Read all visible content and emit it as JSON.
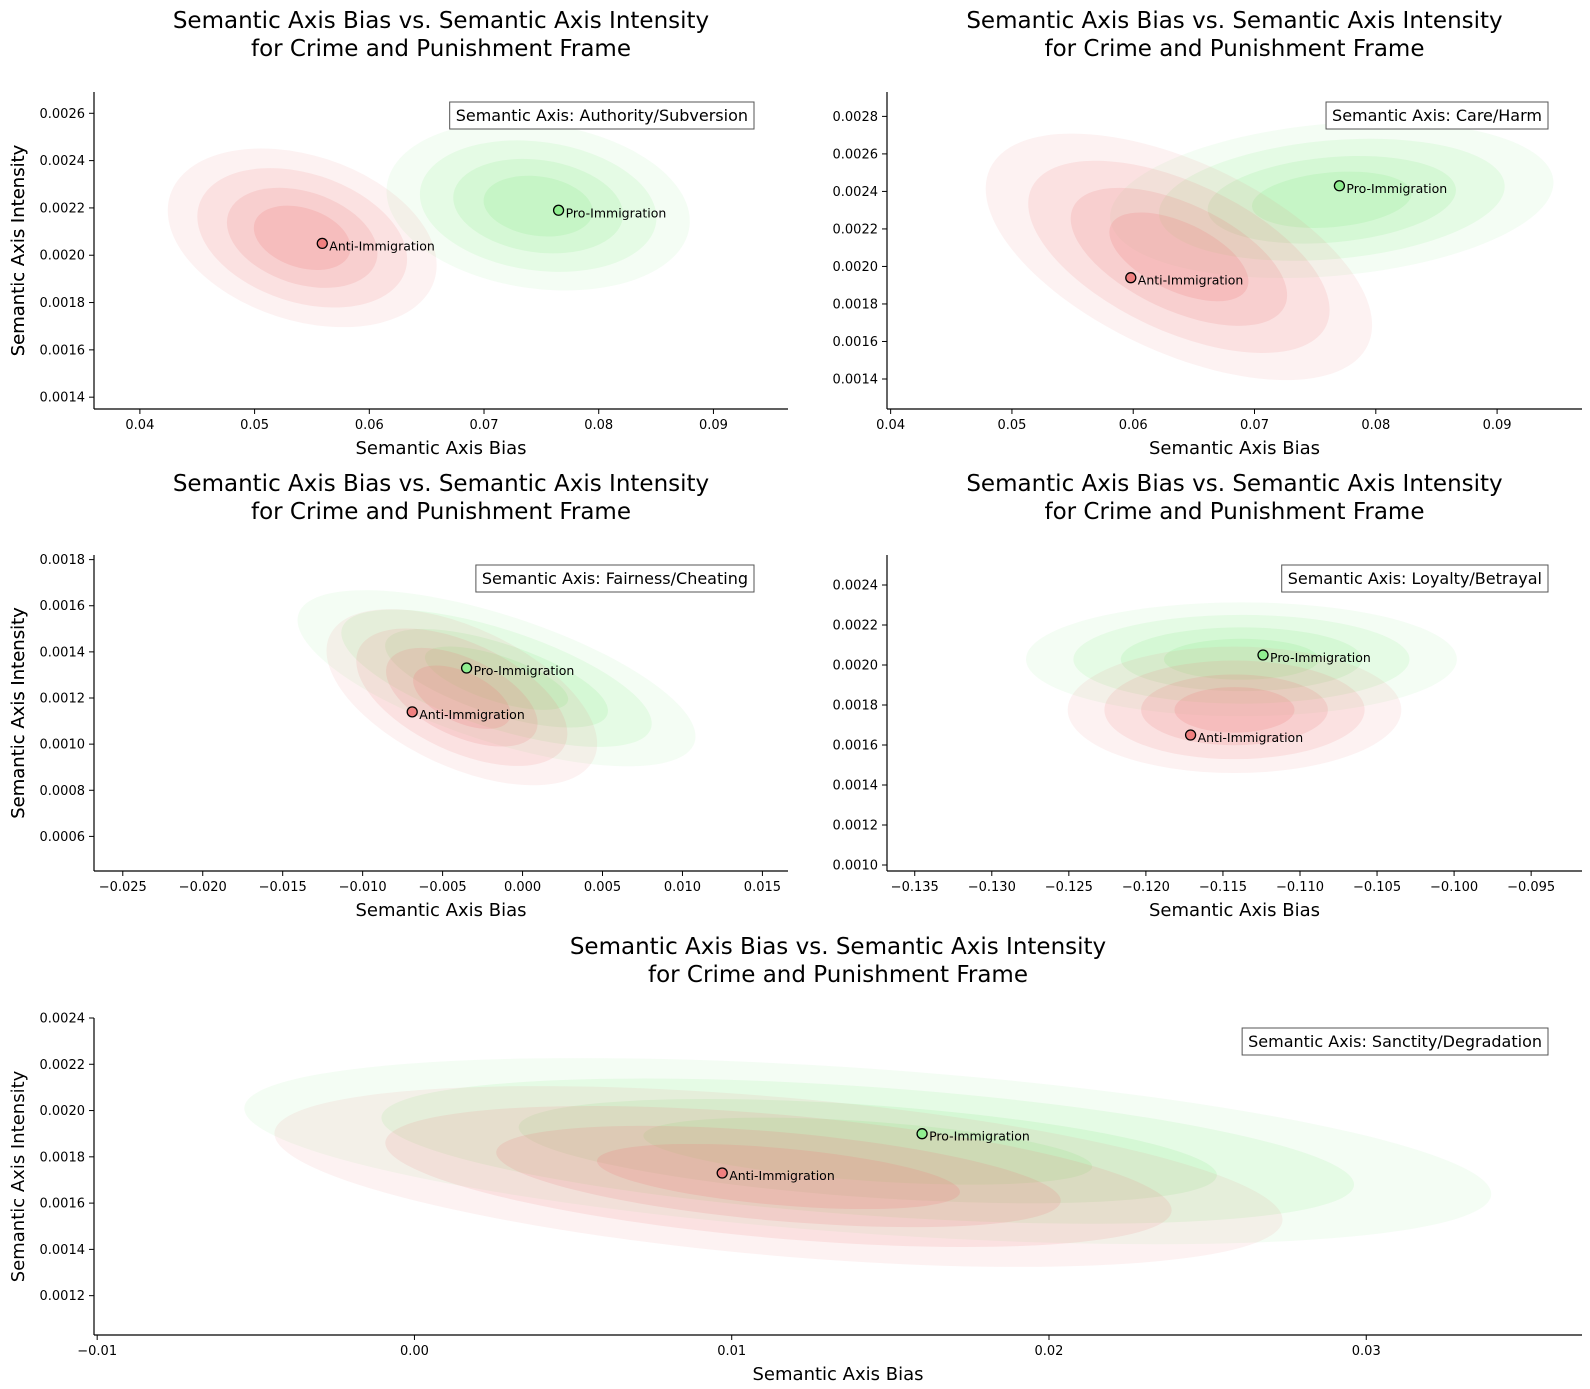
{
  "colors": {
    "anti": "#f08080",
    "pro": "#90ee90",
    "axis": "#000000"
  },
  "chart_data": [
    {
      "type": "scatter",
      "title": "Semantic Axis Bias vs. Semantic Axis Intensity\nfor Crime and Punishment Frame",
      "xlabel": "Semantic Axis Bias",
      "ylabel": "Semantic Axis Intensity",
      "annotation": "Semantic Axis: Authority/Subversion",
      "xlim": [
        0.036,
        0.0965
      ],
      "ylim": [
        0.00135,
        0.00269
      ],
      "xticks": [
        "0.04",
        "0.05",
        "0.06",
        "0.07",
        "0.08",
        "0.09"
      ],
      "yticks": [
        "0.0014",
        "0.0016",
        "0.0018",
        "0.0020",
        "0.0022",
        "0.0024",
        "0.0026"
      ],
      "legend_position": "top-right",
      "series": [
        {
          "name": "Anti-Immigration",
          "x": 0.0559,
          "y": 0.00205
        },
        {
          "name": "Pro-Immigration",
          "x": 0.0765,
          "y": 0.00219
        }
      ]
    },
    {
      "type": "scatter",
      "title": "Semantic Axis Bias vs. Semantic Axis Intensity\nfor Crime and Punishment Frame",
      "xlabel": "Semantic Axis Bias",
      "ylabel": "Semantic Axis Intensity",
      "annotation": "Semantic Axis: Care/Harm",
      "xlim": [
        0.0397,
        0.097
      ],
      "ylim": [
        0.00124,
        0.00293
      ],
      "xticks": [
        "0.04",
        "0.05",
        "0.06",
        "0.07",
        "0.08",
        "0.09"
      ],
      "yticks": [
        "0.0014",
        "0.0016",
        "0.0018",
        "0.0020",
        "0.0022",
        "0.0024",
        "0.0026",
        "0.0028"
      ],
      "legend_position": "top-right",
      "series": [
        {
          "name": "Anti-Immigration",
          "x": 0.0598,
          "y": 0.00194
        },
        {
          "name": "Pro-Immigration",
          "x": 0.077,
          "y": 0.00243
        }
      ]
    },
    {
      "type": "scatter",
      "title": "Semantic Axis Bias vs. Semantic Axis Intensity\nfor Crime and Punishment Frame",
      "xlabel": "Semantic Axis Bias",
      "ylabel": "Semantic Axis Intensity",
      "annotation": "Semantic Axis: Fairness/Cheating",
      "xlim": [
        -0.0268,
        0.0166
      ],
      "ylim": [
        0.00045,
        0.00182
      ],
      "xticks": [
        "−0.025",
        "−0.020",
        "−0.015",
        "−0.010",
        "−0.005",
        "0.000",
        "0.005",
        "0.010",
        "0.015"
      ],
      "yticks": [
        "0.0006",
        "0.0008",
        "0.0010",
        "0.0012",
        "0.0014",
        "0.0016",
        "0.0018"
      ],
      "legend_position": "top-right",
      "series": [
        {
          "name": "Anti-Immigration",
          "x": -0.0069,
          "y": 0.00114
        },
        {
          "name": "Pro-Immigration",
          "x": -0.0035,
          "y": 0.00133
        }
      ]
    },
    {
      "type": "scatter",
      "title": "Semantic Axis Bias vs. Semantic Axis Intensity\nfor Crime and Punishment Frame",
      "xlabel": "Semantic Axis Bias",
      "ylabel": "Semantic Axis Intensity",
      "annotation": "Semantic Axis: Loyalty/Betrayal",
      "xlim": [
        -0.1368,
        -0.0917
      ],
      "ylim": [
        0.00097,
        0.00255
      ],
      "xticks": [
        "−0.135",
        "−0.130",
        "−0.125",
        "−0.120",
        "−0.115",
        "−0.110",
        "−0.105",
        "−0.100",
        "−0.095"
      ],
      "yticks": [
        "0.0010",
        "0.0012",
        "0.0014",
        "0.0016",
        "0.0018",
        "0.0020",
        "0.0022",
        "0.0024"
      ],
      "legend_position": "top-right",
      "series": [
        {
          "name": "Anti-Immigration",
          "x": -0.1171,
          "y": 0.00165
        },
        {
          "name": "Pro-Immigration",
          "x": -0.1124,
          "y": 0.00205
        }
      ]
    },
    {
      "type": "scatter",
      "title": "Semantic Axis Bias vs. Semantic Axis Intensity\nfor Crime and Punishment Frame",
      "xlabel": "Semantic Axis Bias",
      "ylabel": "Semantic Axis Intensity",
      "annotation": "Semantic Axis: Sanctity/Degradation",
      "xlim": [
        -0.0101,
        0.0368
      ],
      "ylim": [
        0.00103,
        0.0024
      ],
      "xticks": [
        "−0.01",
        "0.00",
        "0.01",
        "0.02",
        "0.03"
      ],
      "yticks": [
        "0.0012",
        "0.0014",
        "0.0016",
        "0.0018",
        "0.0020",
        "0.0022",
        "0.0024"
      ],
      "legend_position": "top-right",
      "series": [
        {
          "name": "Anti-Immigration",
          "x": 0.0097,
          "y": 0.00173
        },
        {
          "name": "Pro-Immigration",
          "x": 0.016,
          "y": 0.0019
        }
      ]
    }
  ]
}
